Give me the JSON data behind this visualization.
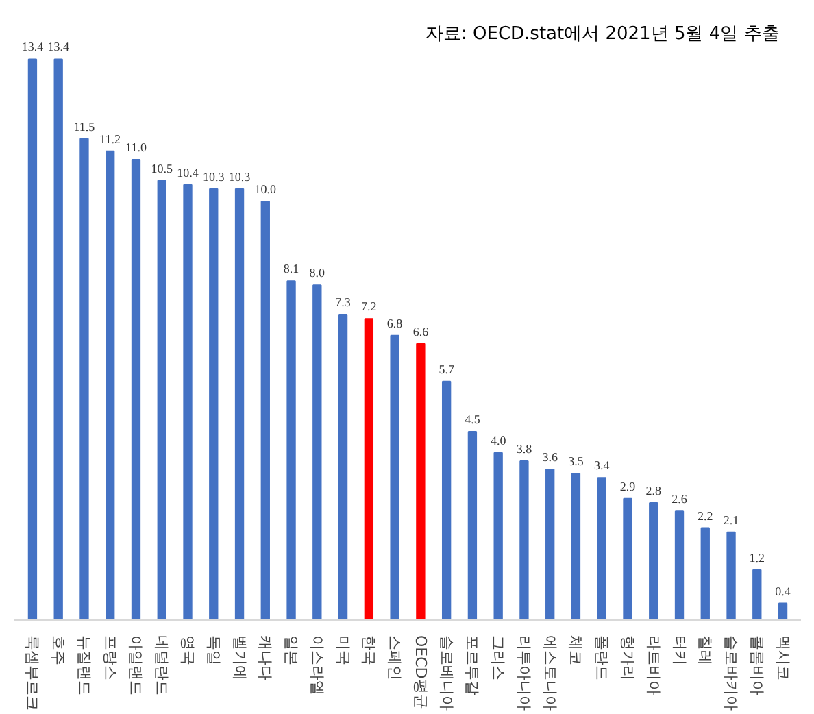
{
  "chart_data": {
    "type": "bar",
    "categories": [
      "룩셈부르크",
      "호주",
      "뉴질랜드",
      "프랑스",
      "아일랜드",
      "네덜란드",
      "영국",
      "독일",
      "벨기에",
      "캐나다",
      "일본",
      "이스라엘",
      "미국",
      "한국",
      "스페인",
      "OECD평균",
      "슬로베니아",
      "포르투갈",
      "그리스",
      "리투아니아",
      "에스토니아",
      "체코",
      "폴란드",
      "헝가리",
      "라트비아",
      "터키",
      "칠레",
      "슬로바키아",
      "콜롬비아",
      "멕시코"
    ],
    "values": [
      13.4,
      13.4,
      11.5,
      11.2,
      11.0,
      10.5,
      10.4,
      10.3,
      10.3,
      10.0,
      8.1,
      8.0,
      7.3,
      7.2,
      6.8,
      6.6,
      5.7,
      4.5,
      4.0,
      3.8,
      3.6,
      3.5,
      3.4,
      2.9,
      2.8,
      2.6,
      2.2,
      2.1,
      1.2,
      0.4
    ],
    "colors": [
      "#4472c4",
      "#4472c4",
      "#4472c4",
      "#4472c4",
      "#4472c4",
      "#4472c4",
      "#4472c4",
      "#4472c4",
      "#4472c4",
      "#4472c4",
      "#4472c4",
      "#4472c4",
      "#4472c4",
      "#ff0000",
      "#4472c4",
      "#ff0000",
      "#4472c4",
      "#4472c4",
      "#4472c4",
      "#4472c4",
      "#4472c4",
      "#4472c4",
      "#4472c4",
      "#4472c4",
      "#4472c4",
      "#4472c4",
      "#4472c4",
      "#4472c4",
      "#4472c4",
      "#4472c4"
    ],
    "value_labels": [
      "13.4",
      "13.4",
      "11.5",
      "11.2",
      "11.0",
      "10.5",
      "10.4",
      "10.3",
      "10.3",
      "10.0",
      "8.1",
      "8.0",
      "7.3",
      "7.2",
      "6.8",
      "6.6",
      "5.7",
      "4.5",
      "4.0",
      "3.8",
      "3.6",
      "3.5",
      "3.4",
      "2.9",
      "2.8",
      "2.6",
      "2.2",
      "2.1",
      "1.2",
      "0.4"
    ],
    "annotations": [
      "자료: OECD.stat에서 2021년 5월 4일 추출"
    ],
    "grid": false
  }
}
